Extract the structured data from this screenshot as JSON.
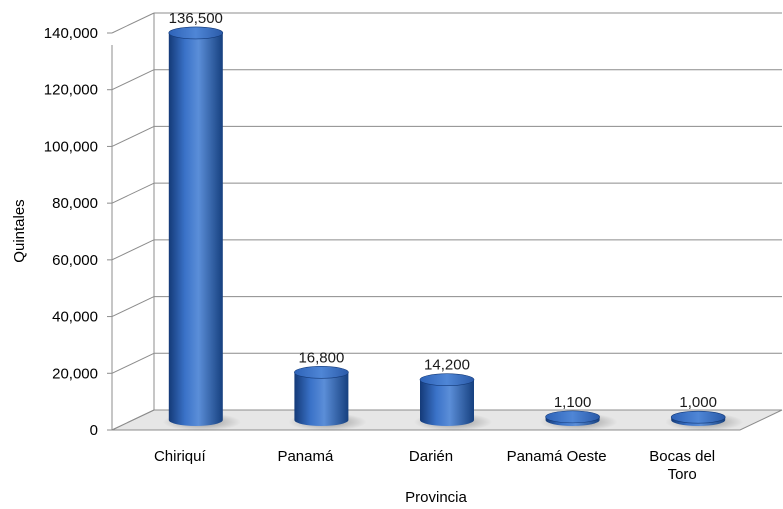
{
  "chart_data": {
    "type": "bar",
    "style": "3d-cylinder",
    "categories": [
      [
        "Chiriquí"
      ],
      [
        "Panamá"
      ],
      [
        "Darién"
      ],
      [
        "Panamá Oeste"
      ],
      [
        "Bocas del",
        "Toro"
      ]
    ],
    "values": [
      136500,
      16800,
      14200,
      1100,
      1000
    ],
    "data_labels": [
      "136,500",
      "16,800",
      "14,200",
      "1,100",
      "1,000"
    ],
    "xlabel": "Provincia",
    "ylabel": "Quintales",
    "ylim": [
      0,
      140000
    ],
    "yticks": [
      0,
      20000,
      40000,
      60000,
      80000,
      100000,
      120000,
      140000
    ],
    "ytick_labels": [
      "0",
      "20,000",
      "40,000",
      "60,000",
      "80,000",
      "100,000",
      "120,000",
      "140,000"
    ],
    "grid": true,
    "legend": "none",
    "colors": {
      "bar_main": "#2e63b8",
      "bar_light": "#6f9de0",
      "bar_dark": "#143a78",
      "grid": "#8c8c8c",
      "floor": "#e6e6e6"
    }
  }
}
